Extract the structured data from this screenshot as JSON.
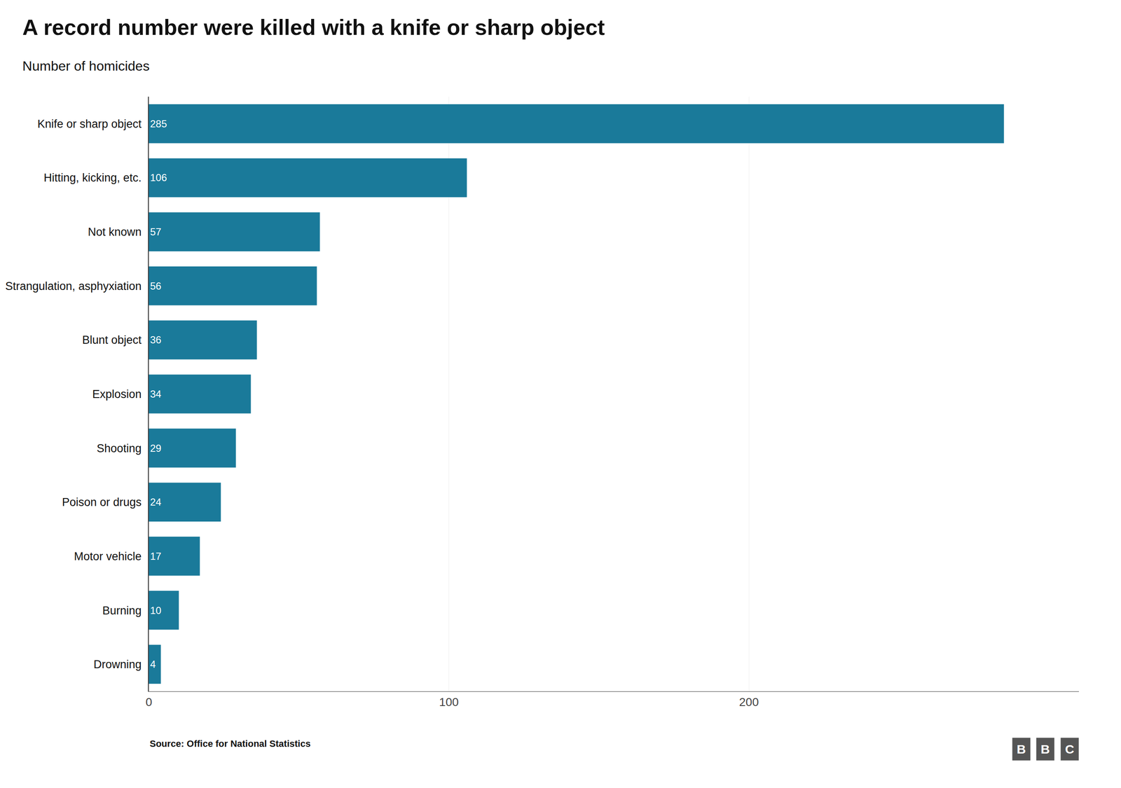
{
  "chart_data": {
    "type": "bar",
    "orientation": "horizontal",
    "title": "A record number were killed with a knife or sharp object",
    "subtitle": "Number of homicides",
    "annotations": [
      "Source: Office for National Statistics",
      "BBC"
    ],
    "categories": [
      "Knife or sharp object",
      "Hitting, kicking, etc.",
      "Not known",
      "Strangulation, asphyxiation",
      "Blunt object",
      "Explosion",
      "Shooting",
      "Poison or drugs",
      "Motor vehicle",
      "Burning",
      "Drowning"
    ],
    "values": [
      285,
      106,
      57,
      56,
      36,
      34,
      29,
      24,
      17,
      10,
      4
    ],
    "color": "#1a7a9a",
    "xlim": [
      0,
      310
    ],
    "xticks": [
      0,
      100,
      200
    ],
    "grid": true,
    "data_labels": true
  }
}
